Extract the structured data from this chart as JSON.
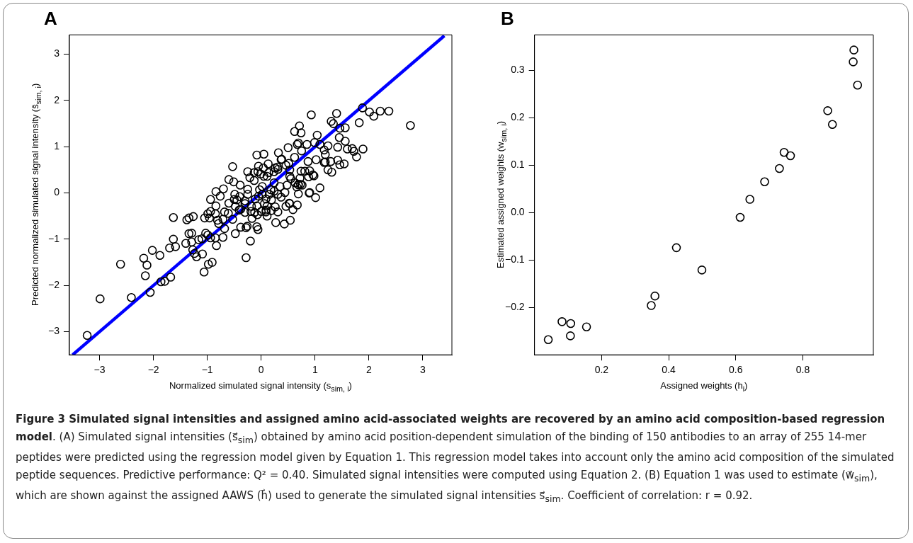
{
  "chart_data": [
    {
      "type": "scatter",
      "title": "A",
      "xlabel": "Normalized simulated signal intensity (s$_{sim, i}$)",
      "ylabel": "Predicted normalized simulated signal intensity (ŝ$_{sim, i}$)",
      "xlim": [
        -3.56,
        3.54
      ],
      "ylim": [
        -3.5,
        3.42
      ],
      "xticks": [
        {
          "value": -3,
          "label": "−3"
        },
        {
          "value": -2,
          "label": "−2"
        },
        {
          "value": -1,
          "label": "−1"
        },
        0,
        1,
        2,
        3
      ],
      "yticks": [
        {
          "value": -3,
          "label": "−3"
        },
        {
          "value": -2,
          "label": "−2"
        },
        {
          "value": -1,
          "label": "−1"
        },
        0,
        1,
        2,
        3
      ],
      "grid": false,
      "legend": false,
      "annotations": [
        "Figure 3 Simulated signal intensities and assigned amino acid-associated weights are recovered by an amino acid composition-based regression model",
        ". (A) Simulated signal intensities (s⃗$_{sim}$) obtained by amino acid position-dependent simulation of the binding of 150 antibodies to an array of 255 14-mer peptides were predicted using the regression model given by Equation 1. This regression model takes into account only the amino acid composition of the simulated peptide sequences. Predictive performance: Q² = 0.40. Simulated signal intensities were computed using Equation 2. (B) Equation 1 was used to estimate (w⃗$_{sim}$), which are shown against the assigned AAWS (h⃗) used to generate the simulated signal intensities s⃗$_{sim}$. Coefficient of correlation: r = 0.92."
      ],
      "series": [
        {
          "type": "scatter",
          "marker": "circle",
          "color": "#000000",
          "x": [
            -3.23,
            -2.99,
            -2.41,
            -2.06,
            -1.86,
            -1.79,
            -1.68,
            -2.15,
            -2.61,
            -2.12,
            -2.18,
            -2.02,
            -1.88,
            -1.7,
            -1.59,
            -1.63,
            -1.63,
            -1.38,
            -1.34,
            -1.26,
            -1.34,
            -1.29,
            -1.4,
            -1.29,
            -1.27,
            -1.24,
            -1.2,
            -1.09,
            -1.06,
            -0.98,
            -0.91,
            -1.16,
            -1.1,
            -1.03,
            -0.99,
            -0.94,
            -0.85,
            -0.83,
            -0.71,
            -0.48,
            -0.28,
            -0.2,
            -0.38,
            -0.28,
            -0.26,
            -0.08,
            -0.06,
            -0.68,
            -1.05,
            -0.99,
            -0.94,
            -0.96,
            -0.85,
            -0.81,
            -0.79,
            -0.71,
            -0.68,
            -0.61,
            -0.53,
            -0.84,
            -0.94,
            -0.84,
            -0.76,
            -0.7,
            -0.6,
            -0.51,
            -0.49,
            -0.45,
            -0.53,
            -0.6,
            -0.38,
            -0.3,
            -0.25,
            -0.25,
            -0.39,
            -0.3,
            -0.18,
            -0.12,
            -0.17,
            -0.07,
            0.0,
            -0.11,
            -0.05,
            -0.03,
            0.02,
            0.09,
            0.11,
            0.09,
            0.11,
            0.19,
            0.09,
            0.27,
            0.43,
            0.54,
            0.31,
            0.26,
            0.46,
            0.59,
            0.67,
            0.53,
            0.69,
            0.9,
            1.01,
            1.09,
            0.19,
            0.15,
            0.24,
            0.31,
            0.35,
            0.44,
            0.37,
            0.48,
            0.66,
            0.69,
            0.73,
            0.63,
            0.55,
            0.72,
            0.88,
            0.96,
            0.81,
            0.9,
            0.74,
            0.53,
            0.53,
            0.46,
            0.51,
            0.37,
            0.31,
            0.24,
            0.14,
            0.11,
            0.05,
            -0.01,
            -0.06,
            -0.13,
            -0.25,
            -0.21,
            -0.13,
            -0.05,
            0.04,
            0.13,
            0.26,
            0.3,
            -0.08,
            0.05,
            0.32,
            0.38,
            0.5,
            0.62,
            0.62,
            0.71,
            0.74,
            0.67,
            0.69,
            0.85,
            0.75,
            0.93,
            1.04,
            0.99,
            1.09,
            1.17,
            1.19,
            1.24,
            1.02,
            0.87,
            1.17,
            1.3,
            1.34,
            1.4,
            1.46,
            1.56,
            1.45,
            1.56,
            1.42,
            1.6,
            1.69,
            1.72,
            1.77,
            1.89,
            1.82,
            1.88,
            2.01,
            2.09,
            2.21,
            2.37,
            2.77,
            1.19,
            1.29,
            1.42,
            1.54,
            1.46,
            1.31,
            1.24,
            0.98,
            0.76,
            0.89,
            0.69,
            0.52,
            0.24,
            0.18,
            0.02,
            0.06,
            -0.08,
            -0.19,
            -0.3,
            -0.41,
            -0.48,
            -0.5,
            -0.4
          ],
          "values": [
            -3.08,
            -2.29,
            -2.26,
            -2.15,
            -1.92,
            -1.91,
            -1.82,
            -1.79,
            -1.54,
            -1.56,
            -1.41,
            -1.24,
            -1.35,
            -1.19,
            -1.16,
            -1.0,
            -0.53,
            -0.58,
            -0.54,
            -0.51,
            -0.88,
            -0.87,
            -1.09,
            -1.06,
            -1.23,
            -1.31,
            -1.38,
            -1.32,
            -1.71,
            -1.54,
            -1.5,
            -1.01,
            -0.99,
            -0.87,
            -0.91,
            -0.97,
            -0.97,
            -1.14,
            -0.96,
            -0.88,
            -1.4,
            -1.04,
            -0.74,
            -0.75,
            -0.72,
            -0.73,
            -0.79,
            -0.77,
            -0.54,
            -0.45,
            -0.4,
            -0.54,
            -0.45,
            -0.59,
            -0.66,
            -0.57,
            -0.41,
            -0.44,
            -0.57,
            -0.28,
            -0.14,
            0.03,
            -0.07,
            0.09,
            0.29,
            0.24,
            -0.03,
            -0.15,
            0.57,
            -0.22,
            -0.35,
            -0.23,
            -0.03,
            0.08,
            0.17,
            -0.17,
            -0.29,
            -0.42,
            -0.55,
            -0.47,
            -0.4,
            -0.13,
            -0.07,
            0.07,
            0.14,
            -0.13,
            -0.28,
            -0.41,
            -0.5,
            -0.38,
            -0.37,
            -0.64,
            -0.67,
            -0.59,
            -0.41,
            -0.3,
            -0.29,
            -0.36,
            -0.26,
            -0.23,
            -0.02,
            0.01,
            -0.1,
            0.11,
            -0.15,
            -0.03,
            0.04,
            -0.03,
            0.14,
            0.01,
            -0.09,
            0.17,
            0.13,
            0.18,
            0.19,
            0.22,
            0.31,
            0.32,
            0.35,
            0.39,
            0.47,
            0.48,
            0.47,
            0.36,
            0.5,
            0.6,
            0.64,
            0.72,
            0.51,
            0.46,
            0.44,
            0.36,
            0.36,
            0.41,
            0.46,
            0.44,
            0.46,
            0.33,
            0.27,
            0.58,
            0.54,
            0.63,
            0.54,
            0.56,
            0.82,
            0.84,
            0.87,
            0.73,
            0.98,
            0.77,
            1.33,
            1.45,
            1.3,
            1.05,
            1.08,
            1.05,
            0.91,
            1.69,
            1.25,
            1.09,
            1.05,
            0.93,
            0.83,
            1.02,
            0.72,
            0.68,
            0.66,
            1.55,
            1.5,
            1.72,
            1.4,
            1.41,
            1.2,
            1.12,
            0.99,
            0.95,
            0.96,
            0.9,
            0.78,
            0.95,
            1.52,
            1.84,
            1.75,
            1.66,
            1.77,
            1.77,
            1.46,
            0.67,
            0.68,
            0.71,
            0.63,
            0.61,
            0.45,
            0.5,
            0.37,
            0.17,
            0.0,
            0.18,
            -0.22,
            0.22,
            0.07,
            -0.03,
            -0.23,
            -0.28,
            -0.4,
            -0.42,
            -0.37,
            -0.29,
            -0.14,
            -0.08
          ]
        },
        {
          "type": "line",
          "marker": "none",
          "color": "#0000ff",
          "x": [
            -3.5,
            3.4
          ],
          "values": [
            -3.5,
            3.4
          ]
        }
      ]
    },
    {
      "type": "scatter",
      "title": "B",
      "xlabel": "Assigned weights (h$_{i}$)",
      "ylabel": "Estimated assigned weights (w$_{sim, i}$)",
      "xlim": [
        0,
        1.01
      ],
      "ylim": [
        -0.3,
        0.375
      ],
      "xticks": [
        0.2,
        0.4,
        0.6,
        0.8
      ],
      "yticks": [
        {
          "value": -0.2,
          "label": "−0.2"
        },
        {
          "value": -0.1,
          "label": "−0.1"
        },
        {
          "value": 0,
          "label": "0.0"
        },
        0.1,
        0.2,
        0.3
      ],
      "grid": false,
      "legend": false,
      "marker": "circle",
      "x": [
        0.041,
        0.082,
        0.108,
        0.107,
        0.155,
        0.348,
        0.359,
        0.423,
        0.499,
        0.613,
        0.642,
        0.686,
        0.73,
        0.744,
        0.763,
        0.874,
        0.888,
        0.952,
        0.95,
        0.963
      ],
      "values": [
        -0.268,
        -0.23,
        -0.234,
        -0.26,
        -0.241,
        -0.196,
        -0.176,
        -0.074,
        -0.121,
        -0.01,
        0.028,
        0.065,
        0.093,
        0.127,
        0.12,
        0.215,
        0.186,
        0.343,
        0.318,
        0.269
      ],
      "color": "#000000"
    }
  ]
}
